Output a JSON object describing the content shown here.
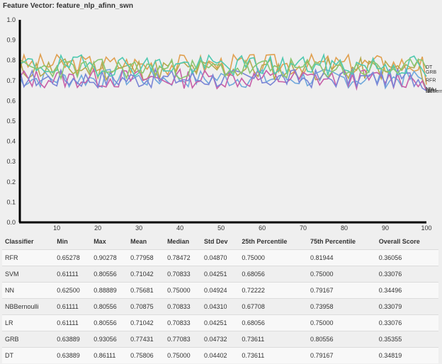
{
  "title": "Feature Vector: feature_nlp_afinn_swn",
  "chart_data": {
    "type": "line",
    "x_ticks": [
      10,
      20,
      30,
      40,
      50,
      60,
      70,
      80,
      90,
      100
    ],
    "y_ticks": [
      "0.0",
      "0.1",
      "0.2",
      "0.3",
      "0.4",
      "0.5",
      "0.6",
      "0.7",
      "0.8",
      "0.9",
      "1.0"
    ],
    "xlim": [
      1,
      100
    ],
    "ylim": [
      0,
      1
    ],
    "series": [
      {
        "name": "RFR",
        "color": "#e0a050",
        "center": 0.78,
        "spread": 0.038,
        "min": 0.65,
        "max": 0.9,
        "end": 0.68,
        "seed": 3
      },
      {
        "name": "SVM",
        "color": "#6fa8dc",
        "center": 0.71,
        "spread": 0.034,
        "min": 0.61,
        "max": 0.81,
        "end": 0.66,
        "seed": 7
      },
      {
        "name": "NN",
        "color": "#b5a94f",
        "center": 0.756,
        "spread": 0.04,
        "min": 0.63,
        "max": 0.89,
        "end": 0.65,
        "seed": 11
      },
      {
        "name": "NBBernoulli",
        "color": "#c75ea8",
        "center": 0.709,
        "spread": 0.035,
        "min": 0.61,
        "max": 0.81,
        "end": 0.65,
        "seed": 13
      },
      {
        "name": "LR",
        "color": "#7a85d6",
        "center": 0.71,
        "spread": 0.034,
        "min": 0.61,
        "max": 0.81,
        "end": 0.65,
        "seed": 17
      },
      {
        "name": "GRB",
        "color": "#4fc9b0",
        "center": 0.774,
        "spread": 0.038,
        "min": 0.64,
        "max": 0.93,
        "end": 0.72,
        "seed": 19
      },
      {
        "name": "DT",
        "color": "#88c672",
        "center": 0.758,
        "spread": 0.036,
        "min": 0.64,
        "max": 0.86,
        "end": 0.76,
        "seed": 23
      }
    ],
    "end_labels": [
      {
        "text": "DT",
        "value": 0.77
      },
      {
        "text": "GRB",
        "value": 0.745
      },
      {
        "text": "RFR",
        "value": 0.705
      },
      {
        "text": "NN",
        "value": 0.66
      },
      {
        "text": "SVM",
        "value": 0.655
      },
      {
        "text": "NBBernoulli",
        "value": 0.65
      },
      {
        "text": "LR",
        "value": 0.65
      }
    ]
  },
  "table": {
    "headers": [
      "Classifier",
      "Min",
      "Max",
      "Mean",
      "Median",
      "Std Dev",
      "25th Percentile",
      "75th Percentile",
      "Overall Score"
    ],
    "rows": [
      [
        "RFR",
        "0.65278",
        "0.90278",
        "0.77958",
        "0.78472",
        "0.04870",
        "0.75000",
        "0.81944",
        "0.36056"
      ],
      [
        "SVM",
        "0.61111",
        "0.80556",
        "0.71042",
        "0.70833",
        "0.04251",
        "0.68056",
        "0.75000",
        "0.33076"
      ],
      [
        "NN",
        "0.62500",
        "0.88889",
        "0.75681",
        "0.75000",
        "0.04924",
        "0.72222",
        "0.79167",
        "0.34496"
      ],
      [
        "NBBernoulli",
        "0.61111",
        "0.80556",
        "0.70875",
        "0.70833",
        "0.04310",
        "0.67708",
        "0.73958",
        "0.33079"
      ],
      [
        "LR",
        "0.61111",
        "0.80556",
        "0.71042",
        "0.70833",
        "0.04251",
        "0.68056",
        "0.75000",
        "0.33076"
      ],
      [
        "GRB",
        "0.63889",
        "0.93056",
        "0.77431",
        "0.77083",
        "0.04732",
        "0.73611",
        "0.80556",
        "0.35355"
      ],
      [
        "DT",
        "0.63889",
        "0.86111",
        "0.75806",
        "0.75000",
        "0.04402",
        "0.73611",
        "0.79167",
        "0.34819"
      ]
    ]
  }
}
